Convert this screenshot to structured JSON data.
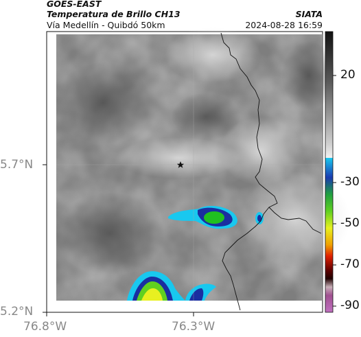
{
  "header": {
    "satellite": "GOES-EAST",
    "product": "Temperatura de Brillo CH13",
    "route": "Vía Medellín - Quibdó 50km",
    "source": "SIATA",
    "timestamp": "2024-08-28 16:59"
  },
  "axes": {
    "lat_labels": [
      "5.7°N",
      "5.2°N"
    ],
    "lon_labels": [
      "76.8°W",
      "76.3°W"
    ]
  },
  "colorbar": {
    "labels": [
      "20",
      "-30",
      "-50",
      "-70",
      "-90"
    ]
  },
  "colors": {
    "cloud_cyan": "#19b4e6",
    "cloud_blue": "#1a2ea0",
    "cloud_green": "#20c020",
    "cloud_yellow": "#e8f020"
  }
}
